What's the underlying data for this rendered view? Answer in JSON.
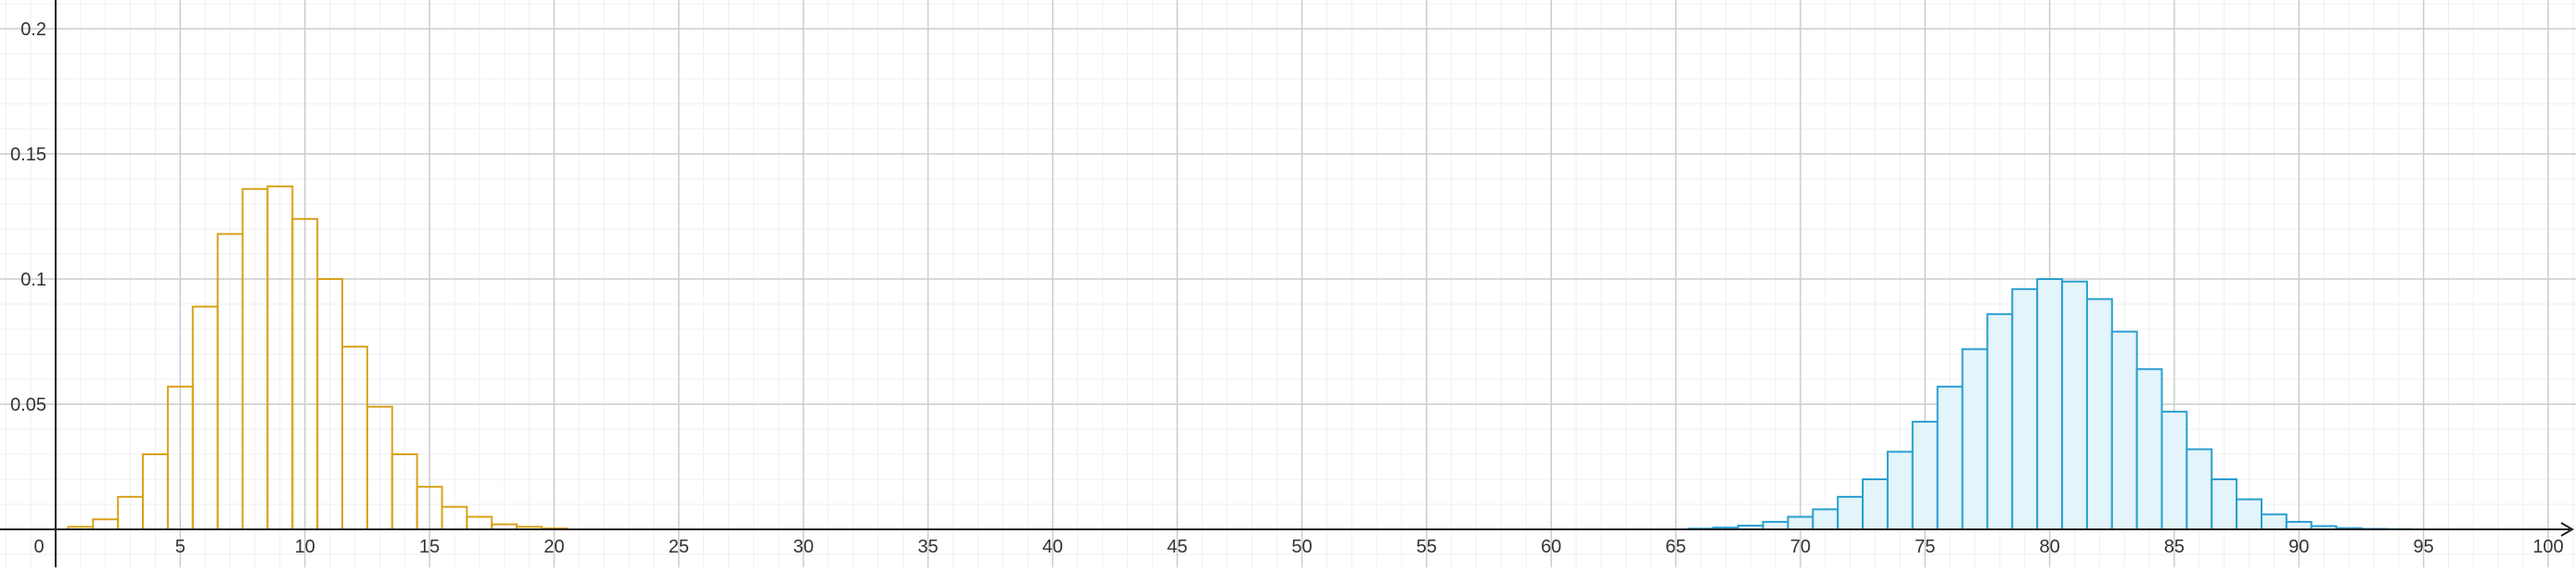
{
  "chart_data": {
    "type": "bar",
    "title": "",
    "xlabel": "",
    "ylabel": "",
    "xlim": [
      0,
      100
    ],
    "ylim": [
      0,
      0.2
    ],
    "grid": true,
    "legend": "none",
    "x_ticks": [
      {
        "value": 5,
        "label": "5"
      },
      {
        "value": 10,
        "label": "10"
      },
      {
        "value": 15,
        "label": "15"
      },
      {
        "value": 20,
        "label": "20"
      },
      {
        "value": 25,
        "label": "25"
      },
      {
        "value": 30,
        "label": "30"
      },
      {
        "value": 35,
        "label": "35"
      },
      {
        "value": 40,
        "label": "40"
      },
      {
        "value": 45,
        "label": "45"
      },
      {
        "value": 50,
        "label": "50"
      },
      {
        "value": 55,
        "label": "55"
      },
      {
        "value": 60,
        "label": "60"
      },
      {
        "value": 65,
        "label": "65"
      },
      {
        "value": 70,
        "label": "70"
      },
      {
        "value": 75,
        "label": "75"
      },
      {
        "value": 80,
        "label": "80"
      },
      {
        "value": 85,
        "label": "85"
      },
      {
        "value": 90,
        "label": "90"
      },
      {
        "value": 95,
        "label": "95"
      },
      {
        "value": 100,
        "label": "100"
      }
    ],
    "y_ticks": [
      {
        "value": 0.05,
        "label": "0.05"
      },
      {
        "value": 0.1,
        "label": "0.1"
      },
      {
        "value": 0.15,
        "label": "0.15"
      },
      {
        "value": 0.2,
        "label": "0.2"
      }
    ],
    "origin_label": "0",
    "series": [
      {
        "color": "#d9a21b",
        "fill": "none",
        "x": [
          1,
          2,
          3,
          4,
          5,
          6,
          7,
          8,
          9,
          10,
          11,
          12,
          13,
          14,
          15,
          16,
          17,
          18,
          19,
          20
        ],
        "values": [
          0.001,
          0.004,
          0.013,
          0.03,
          0.057,
          0.089,
          0.118,
          0.136,
          0.137,
          0.124,
          0.1,
          0.073,
          0.049,
          0.03,
          0.017,
          0.009,
          0.005,
          0.002,
          0.001,
          0.0004
        ]
      },
      {
        "color": "#2a9fd0",
        "fill": "#e3f4fa",
        "x": [
          66,
          67,
          68,
          69,
          70,
          71,
          72,
          73,
          74,
          75,
          76,
          77,
          78,
          79,
          80,
          81,
          82,
          83,
          84,
          85,
          86,
          87,
          88,
          89,
          90,
          91,
          92,
          93,
          94
        ],
        "values": [
          0.0003,
          0.0007,
          0.0015,
          0.003,
          0.005,
          0.008,
          0.013,
          0.02,
          0.031,
          0.043,
          0.057,
          0.072,
          0.086,
          0.096,
          0.1,
          0.099,
          0.092,
          0.079,
          0.064,
          0.047,
          0.032,
          0.02,
          0.012,
          0.006,
          0.003,
          0.0013,
          0.0005,
          0.0002,
          0.0001
        ]
      }
    ]
  }
}
